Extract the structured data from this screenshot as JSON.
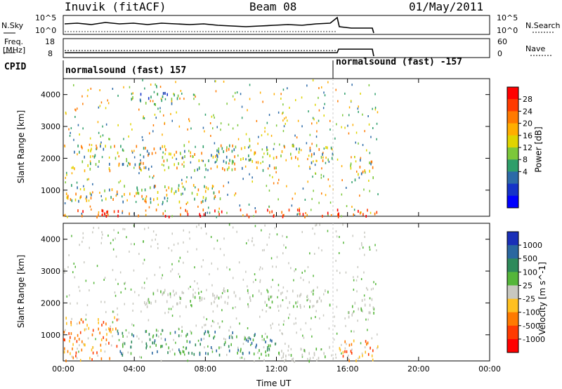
{
  "header": {
    "station": "Inuvik (fitACF)",
    "beam": "Beam 08",
    "date": "01/May/2011"
  },
  "top_panels": {
    "nsky_label": "N.Sky",
    "nsky_ticks": [
      "10^5",
      "10^0"
    ],
    "nsearch_label": "N.Search",
    "nsearch_ticks": [
      "10^5",
      "10^0"
    ],
    "freq_label": [
      "Freq.",
      "[MHz]"
    ],
    "freq_ticks": [
      "18",
      "8"
    ],
    "nave_label": "Nave",
    "nave_ticks": [
      "60",
      "0"
    ],
    "cpid_label": "CPID",
    "cpid_segments": [
      "normalsound (fast) 157",
      "normalsound (fast) -157"
    ]
  },
  "chart_data": [
    {
      "type": "heatmap",
      "panel": "power",
      "ylabel": "Slant Range [km]",
      "xlabel": "",
      "y_ticks": [
        1000,
        2000,
        3000,
        4000
      ],
      "ylim": [
        180,
        4500
      ],
      "x_ticks": [
        "00:00",
        "04:00",
        "08:00",
        "12:00",
        "16:00",
        "20:00",
        "00:00"
      ],
      "xlim_hours": [
        0,
        24
      ],
      "data_extent_hours": [
        0,
        17.7
      ],
      "colorbar": {
        "label": "Power [dB]",
        "ticks": [
          "28",
          "24",
          "20",
          "16",
          "12",
          "8",
          "4"
        ],
        "colors": [
          "#ff0000",
          "#ff3b00",
          "#ff7a00",
          "#ffae00",
          "#dfd400",
          "#7cc83a",
          "#2e9e6a",
          "#2c6aa8",
          "#1533c8",
          "#0000ff"
        ]
      },
      "scatter_regions": [
        {
          "t": [
            0.0,
            17.7
          ],
          "r": [
            200,
            430
          ],
          "level": "high"
        },
        {
          "t": [
            0.0,
            9.0
          ],
          "r": [
            650,
            1200
          ],
          "level": "mid"
        },
        {
          "t": [
            0.5,
            12.0
          ],
          "r": [
            1650,
            2450
          ],
          "level": "mid"
        },
        {
          "t": [
            12.0,
            15.2
          ],
          "r": [
            1900,
            2450
          ],
          "level": "mid"
        },
        {
          "t": [
            16.0,
            17.5
          ],
          "r": [
            1300,
            2000
          ],
          "level": "mid"
        },
        {
          "t": [
            3.5,
            6.5
          ],
          "r": [
            3700,
            4100
          ],
          "level": "low"
        }
      ]
    },
    {
      "type": "heatmap",
      "panel": "velocity",
      "ylabel": "Slant Range [km]",
      "xlabel": "Time UT",
      "y_ticks": [
        1000,
        2000,
        3000,
        4000
      ],
      "ylim": [
        180,
        4500
      ],
      "x_ticks": [
        "00:00",
        "04:00",
        "08:00",
        "12:00",
        "16:00",
        "20:00",
        "00:00"
      ],
      "xlim_hours": [
        0,
        24
      ],
      "data_extent_hours": [
        0,
        17.7
      ],
      "colorbar": {
        "label": "Velocity [m s^-1]",
        "ticks": [
          "1000",
          "500",
          "100",
          "25",
          "-25",
          "-100",
          "-500",
          "-1000"
        ],
        "colors": [
          "#1a2fb8",
          "#2a67a0",
          "#2e8a5a",
          "#55b63a",
          "#c8c8c0",
          "#ffc020",
          "#ff7a00",
          "#ff3a00",
          "#ff0000"
        ]
      },
      "scatter_regions": [
        {
          "t": [
            0.0,
            3.0
          ],
          "r": [
            200,
            1600
          ],
          "level": "negative"
        },
        {
          "t": [
            3.0,
            12.0
          ],
          "r": [
            400,
            1200
          ],
          "level": "positive"
        },
        {
          "t": [
            4.5,
            15.0
          ],
          "r": [
            1900,
            2450
          ],
          "level": "ground"
        },
        {
          "t": [
            12.0,
            15.0
          ],
          "r": [
            200,
            700
          ],
          "level": "ground"
        },
        {
          "t": [
            15.5,
            17.7
          ],
          "r": [
            200,
            900
          ],
          "level": "negative"
        },
        {
          "t": [
            16.0,
            17.5
          ],
          "r": [
            1500,
            2200
          ],
          "level": "ground"
        }
      ]
    }
  ]
}
